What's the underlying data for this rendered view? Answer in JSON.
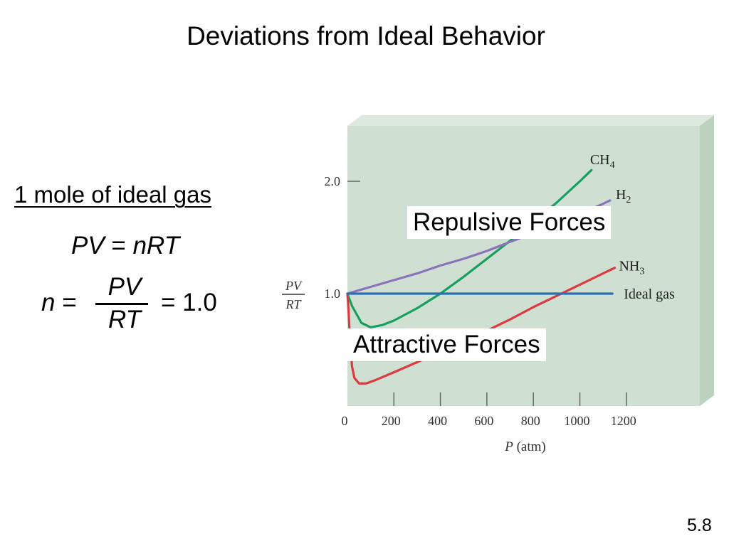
{
  "slide": {
    "title": "Deviations from Ideal Behavior",
    "subheading": "1 mole of ideal gas",
    "equation1": {
      "lhs": "PV",
      "eq": " = ",
      "rhs": "nRT"
    },
    "equation2": {
      "lhs": "n",
      "eq": " = ",
      "numerator": "PV",
      "denominator": "RT",
      "result": "= 1.0"
    },
    "callouts": {
      "repulsive": "Repulsive Forces",
      "attractive": "Attractive Forces"
    },
    "slide_number": "5.8"
  },
  "chart_data": {
    "type": "line",
    "xlabel": {
      "var": "P",
      "unit": " (atm)"
    },
    "ylabel": {
      "numerator": "PV",
      "denominator": "RT"
    },
    "x_ticks": [
      "0",
      "200",
      "400",
      "600",
      "800",
      "1000",
      "1200"
    ],
    "y_ticks": [
      "1.0",
      "2.0"
    ],
    "xlim": [
      0,
      1400
    ],
    "ylim": [
      0.1,
      2.5
    ],
    "colors": {
      "panel": "#cfe0d3",
      "panel_right": "#bad2be",
      "panel_top": "#dde9de"
    },
    "series": [
      {
        "name": "CH₄",
        "label": "CH",
        "sub": "4",
        "color": "#17a05d",
        "x": [
          0,
          20,
          60,
          100,
          150,
          200,
          300,
          400,
          500,
          600,
          700,
          800,
          900,
          1000,
          1050
        ],
        "y": [
          1.0,
          0.89,
          0.74,
          0.7,
          0.72,
          0.76,
          0.87,
          1.0,
          1.15,
          1.31,
          1.47,
          1.64,
          1.81,
          2.0,
          2.1
        ]
      },
      {
        "name": "H₂",
        "label": "H",
        "sub": "2",
        "color": "#8b73bb",
        "x": [
          0,
          100,
          200,
          300,
          400,
          500,
          600,
          700,
          800,
          900,
          1000,
          1100,
          1130
        ],
        "y": [
          1.0,
          1.06,
          1.12,
          1.18,
          1.25,
          1.31,
          1.38,
          1.46,
          1.54,
          1.62,
          1.71,
          1.8,
          1.83
        ]
      },
      {
        "name": "NH₃",
        "label": "NH",
        "sub": "3",
        "color": "#dd3a40",
        "x": [
          0,
          5,
          10,
          20,
          30,
          50,
          80,
          120,
          200,
          300,
          400,
          500,
          600,
          700,
          800,
          900,
          1000,
          1100,
          1150
        ],
        "y": [
          1.0,
          0.85,
          0.62,
          0.35,
          0.25,
          0.2,
          0.2,
          0.23,
          0.3,
          0.39,
          0.48,
          0.57,
          0.67,
          0.77,
          0.88,
          0.98,
          1.08,
          1.18,
          1.23
        ]
      },
      {
        "name": "Ideal gas",
        "label": "Ideal gas",
        "sub": "",
        "color": "#2a70b5",
        "x": [
          0,
          1140
        ],
        "y": [
          1.0,
          1.0
        ]
      }
    ]
  }
}
